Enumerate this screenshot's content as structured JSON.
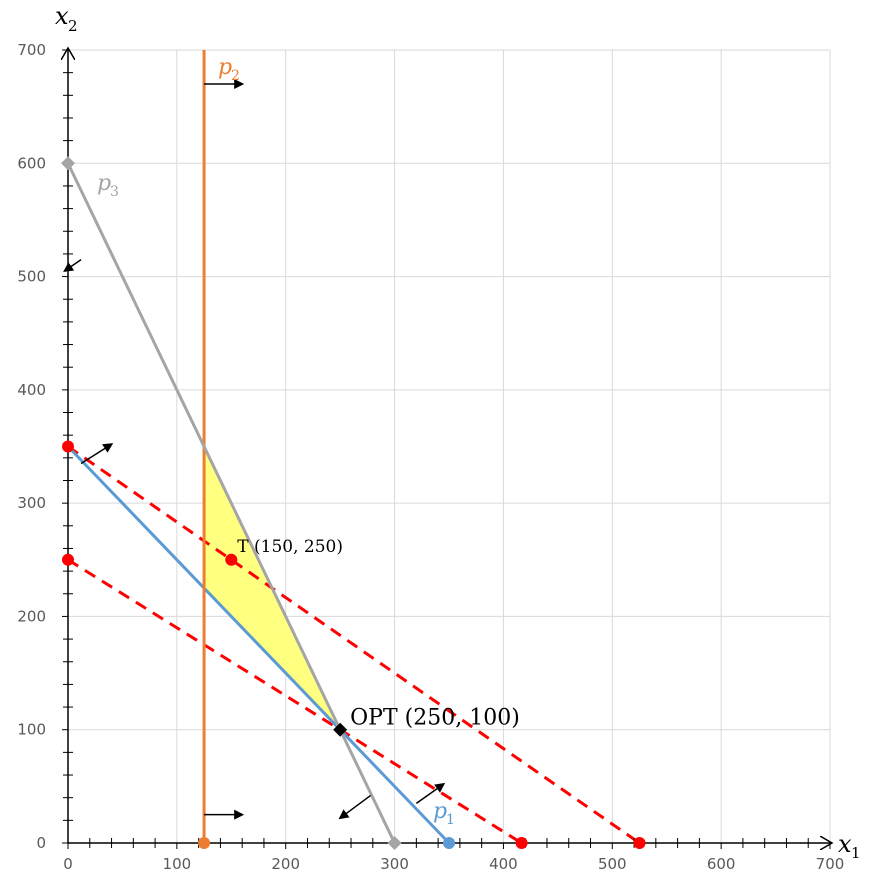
{
  "chart_data": {
    "type": "line",
    "title": "",
    "xlabel": {
      "main": "x",
      "sub": "1"
    },
    "ylabel": {
      "main": "x",
      "sub": "2"
    },
    "xlim": [
      0,
      700
    ],
    "ylim": [
      0,
      700
    ],
    "xticks": [
      0,
      100,
      200,
      300,
      400,
      500,
      600,
      700
    ],
    "yticks": [
      0,
      100,
      200,
      300,
      400,
      500,
      600,
      700
    ],
    "grid": true,
    "feasible_region": {
      "color": "#ffff80",
      "vertices": [
        [
          125,
          350
        ],
        [
          125,
          225
        ],
        [
          250,
          100
        ]
      ]
    },
    "constraints": [
      {
        "name_main": "p",
        "name_sub": "1",
        "color": "#5b9bd5",
        "points": [
          [
            0,
            350
          ],
          [
            350,
            0
          ]
        ]
      },
      {
        "name_main": "p",
        "name_sub": "2",
        "color": "#ed7d31",
        "points": [
          [
            125,
            0
          ],
          [
            125,
            700
          ]
        ]
      },
      {
        "name_main": "p",
        "name_sub": "3",
        "color": "#a5a5a5",
        "points": [
          [
            0,
            600
          ],
          [
            300,
            0
          ]
        ]
      }
    ],
    "objective_lines": {
      "color": "#ff0000",
      "style": "dashed",
      "lines": [
        {
          "points": [
            [
              0,
              250
            ],
            [
              416.67,
              0
            ]
          ]
        },
        {
          "points": [
            [
              0,
              350
            ],
            [
              525,
              0
            ]
          ]
        }
      ]
    },
    "markers": [
      {
        "x": 0,
        "y": 600,
        "color": "#a5a5a5",
        "shape": "diamond"
      },
      {
        "x": 300,
        "y": 0,
        "color": "#a5a5a5",
        "shape": "diamond"
      },
      {
        "x": 125,
        "y": 0,
        "color": "#ed7d31",
        "shape": "circle"
      },
      {
        "x": 350,
        "y": 0,
        "color": "#5b9bd5",
        "shape": "circle"
      },
      {
        "x": 0,
        "y": 350,
        "color": "#ff0000",
        "shape": "circle"
      },
      {
        "x": 0,
        "y": 250,
        "color": "#ff0000",
        "shape": "circle"
      },
      {
        "x": 416.67,
        "y": 0,
        "color": "#ff0000",
        "shape": "circle"
      },
      {
        "x": 525,
        "y": 0,
        "color": "#ff0000",
        "shape": "circle"
      },
      {
        "x": 150,
        "y": 250,
        "color": "#ff0000",
        "shape": "circle"
      },
      {
        "x": 250,
        "y": 100,
        "color": "#000000",
        "shape": "diamond"
      }
    ],
    "annotations": [
      {
        "text": "T (150, 250)",
        "x": 150,
        "y": 250
      },
      {
        "text": "OPT (250, 100)",
        "x": 250,
        "y": 100
      }
    ],
    "arrows": [
      {
        "from": [
          125,
          670
        ],
        "to": [
          160,
          670
        ]
      },
      {
        "from": [
          125,
          25
        ],
        "to": [
          160,
          25
        ]
      },
      {
        "from": [
          12,
          515
        ],
        "to": [
          -3,
          505
        ]
      },
      {
        "from": [
          278,
          42
        ],
        "to": [
          250,
          22
        ]
      },
      {
        "from": [
          12,
          335
        ],
        "to": [
          40,
          352
        ]
      },
      {
        "from": [
          320,
          35
        ],
        "to": [
          345,
          52
        ]
      }
    ]
  }
}
